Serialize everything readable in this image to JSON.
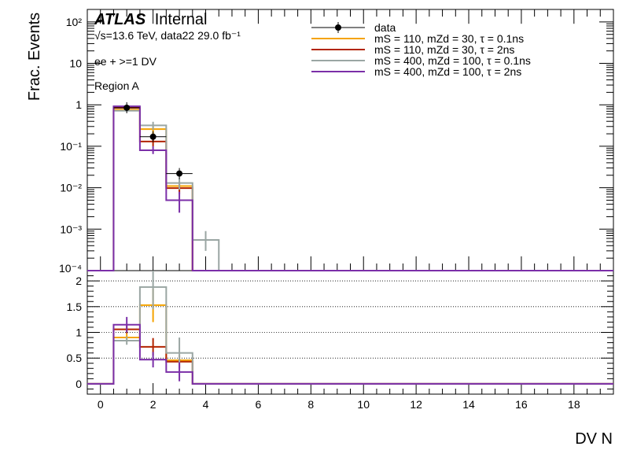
{
  "chart_data": {
    "type": "histogram",
    "atlas_label": "ATLAS",
    "atlas_sub": "Internal",
    "energy_text": "√s=13.6 TeV, data22 29.0 fb⁻¹",
    "selection": "ee + >=1 DV",
    "region": "Region A",
    "ylabel": "Frac. Events",
    "xlabel": "DV N",
    "top_ylog": true,
    "top_ylim": [
      0.0001,
      200
    ],
    "top_yticks": [
      {
        "v": 0.001,
        "label": "10⁻³"
      },
      {
        "v": 0.01,
        "label": "10⁻²"
      },
      {
        "v": 0.1,
        "label": "10⁻¹"
      },
      {
        "v": 1,
        "label": "1"
      },
      {
        "v": 10,
        "label": "10"
      },
      {
        "v": 100,
        "label": "10²"
      }
    ],
    "top_cut_label": "10⁻⁴",
    "ratio_ylim": [
      -0.2,
      2.2
    ],
    "ratio_yticks": [
      "0",
      "0.5",
      "1",
      "1.5",
      "2"
    ],
    "ratio_grid": [
      0.5,
      1,
      1.5,
      2
    ],
    "xlim": [
      -0.5,
      19.5
    ],
    "xticks": [
      "0",
      "2",
      "4",
      "6",
      "8",
      "10",
      "12",
      "14",
      "16",
      "18"
    ],
    "bins": [
      0,
      1,
      2,
      3,
      4
    ],
    "data": [
      {
        "x": 1,
        "y": 0.85
      },
      {
        "x": 2,
        "y": 0.17
      },
      {
        "x": 3,
        "y": 0.022
      }
    ],
    "series": [
      {
        "name": "mS = 110, mZd = 30, τ = 0.1ns",
        "color": "#f5a300",
        "values": [
          0,
          0.76,
          0.26,
          0.011,
          0
        ],
        "errors": [
          [
            0,
            0
          ],
          [
            0.72,
            0.8
          ],
          [
            0.2,
            0.33
          ],
          [
            0.008,
            0.014
          ],
          [
            0,
            0
          ]
        ],
        "ratio": [
          0,
          0.9,
          1.53,
          0.46,
          0
        ],
        "ratio_err": [
          [
            0,
            0
          ],
          [
            0.82,
            0.98
          ],
          [
            1.2,
            1.85
          ],
          [
            0.4,
            0.52
          ],
          [
            0,
            0
          ]
        ]
      },
      {
        "name": "mS = 110, mZd = 30, τ = 2ns",
        "color": "#b22400",
        "values": [
          0,
          0.85,
          0.13,
          0.0098,
          0
        ],
        "errors": [
          [
            0,
            0
          ],
          [
            0.8,
            0.9
          ],
          [
            0.1,
            0.16
          ],
          [
            0.007,
            0.013
          ],
          [
            0,
            0
          ]
        ],
        "ratio": [
          0,
          1.06,
          0.72,
          0.43,
          0
        ],
        "ratio_err": [
          [
            0,
            0
          ],
          [
            0.98,
            1.14
          ],
          [
            0.55,
            0.89
          ],
          [
            0.3,
            0.56
          ],
          [
            0,
            0
          ]
        ]
      },
      {
        "name": "mS = 400, mZd = 100, τ = 0.1ns",
        "color": "#9aa6a3",
        "values": [
          0,
          0.72,
          0.32,
          0.013,
          0.00055
        ],
        "errors": [
          [
            0,
            0
          ],
          [
            0.68,
            0.76
          ],
          [
            0.25,
            0.39
          ],
          [
            0.009,
            0.017
          ],
          [
            0.0003,
            0.0009
          ]
        ],
        "ratio": [
          0,
          0.84,
          1.88,
          0.6,
          0
        ],
        "ratio_err": [
          [
            0,
            0
          ],
          [
            0.76,
            0.92
          ],
          [
            1.45,
            2.2
          ],
          [
            0.3,
            0.9
          ],
          [
            0,
            0
          ]
        ]
      },
      {
        "name": "mS = 400, mZd = 100, τ = 2ns",
        "color": "#7b2fa8",
        "values": [
          0,
          0.92,
          0.08,
          0.005,
          0
        ],
        "errors": [
          [
            0,
            0
          ],
          [
            0.87,
            0.97
          ],
          [
            0.065,
            0.1
          ],
          [
            0.0025,
            0.008
          ],
          [
            0,
            0
          ]
        ],
        "ratio": [
          0,
          1.15,
          0.47,
          0.23,
          0
        ],
        "ratio_err": [
          [
            0,
            0
          ],
          [
            1.0,
            1.3
          ],
          [
            0.32,
            0.62
          ],
          [
            0.05,
            0.42
          ],
          [
            0,
            0
          ]
        ]
      }
    ],
    "legend": [
      {
        "kind": "data",
        "label": "data"
      },
      {
        "kind": "line",
        "color": "#f5a300",
        "label": "mS = 110, mZd = 30, τ = 0.1ns"
      },
      {
        "kind": "line",
        "color": "#b22400",
        "label": "mS = 110, mZd = 30, τ = 2ns"
      },
      {
        "kind": "line",
        "color": "#9aa6a3",
        "label": "mS = 400, mZd = 100, τ = 0.1ns"
      },
      {
        "kind": "line",
        "color": "#7b2fa8",
        "label": "mS = 400, mZd = 100, τ = 2ns"
      }
    ]
  }
}
